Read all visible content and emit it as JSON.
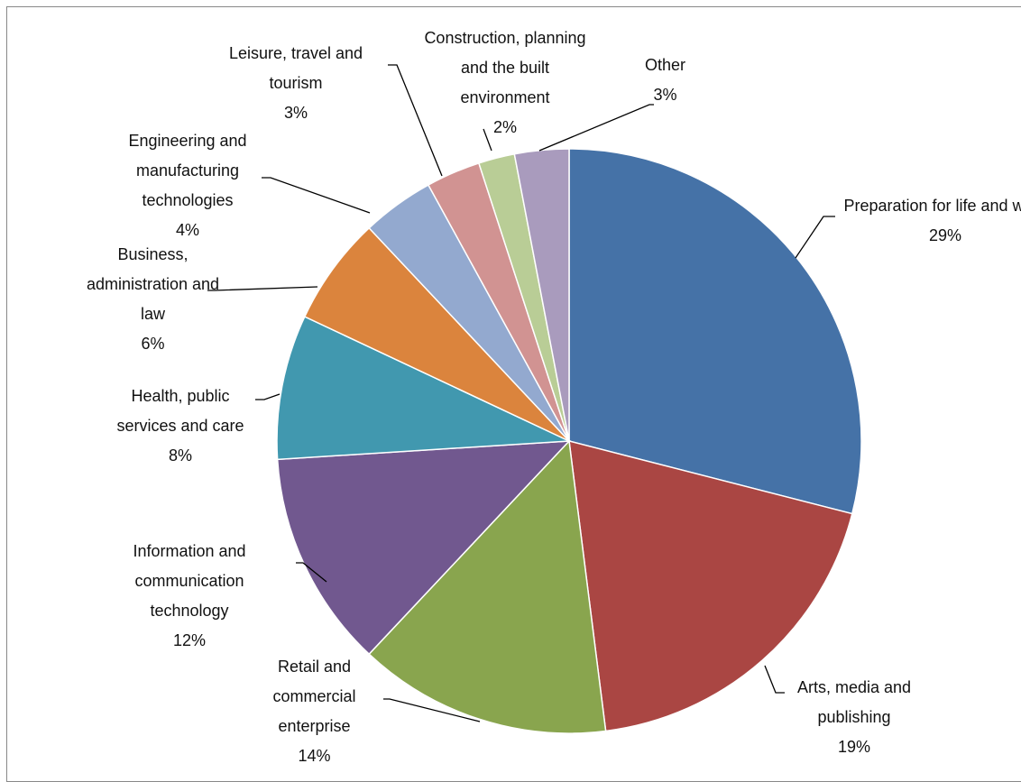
{
  "chart_data": {
    "type": "pie",
    "categories": [
      "Preparation for life and work",
      "Arts, media and publishing",
      "Retail and commercial enterprise",
      "Information and communication technology",
      "Health, public services and care",
      "Business, administration and law",
      "Engineering and manufacturing technologies",
      "Leisure, travel and tourism",
      "Construction, planning and the built environment",
      "Other"
    ],
    "values": [
      29,
      19,
      14,
      12,
      8,
      6,
      4,
      3,
      2,
      3
    ],
    "value_labels": [
      "29%",
      "19%",
      "14%",
      "12%",
      "8%",
      "6%",
      "4%",
      "3%",
      "2%",
      "3%"
    ],
    "colors": [
      "#4572a7",
      "#aa4643",
      "#89a54e",
      "#71588f",
      "#4198af",
      "#db843d",
      "#93a9cf",
      "#d19392",
      "#b9cd96",
      "#a99bbd"
    ]
  }
}
